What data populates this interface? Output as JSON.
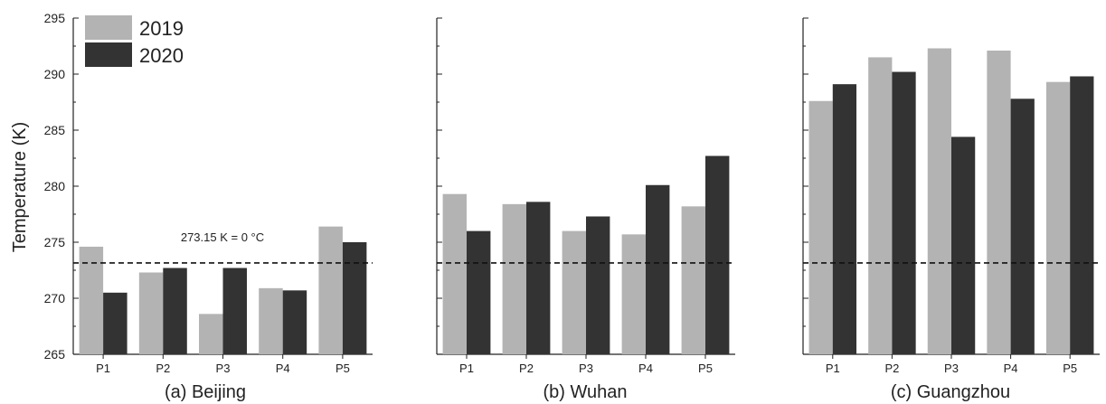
{
  "chart_data": {
    "type": "bar",
    "ylabel": "Temperature (K)",
    "ylim": [
      265,
      295
    ],
    "yticks": [
      265,
      270,
      275,
      280,
      285,
      290,
      295
    ],
    "categories": [
      "P1",
      "P2",
      "P3",
      "P4",
      "P5"
    ],
    "legend": {
      "placement": "top-left",
      "entries": [
        {
          "name": "2019",
          "color": "#b3b3b3"
        },
        {
          "name": "2020",
          "color": "#333333"
        }
      ]
    },
    "reference_line": {
      "value": 273.15,
      "style": "dashed",
      "label": "273.15 K = 0 °C"
    },
    "panels": [
      {
        "title": "(a) Beijing",
        "series": [
          {
            "name": "2019",
            "values": [
              274.6,
              272.3,
              268.6,
              270.9,
              276.4
            ]
          },
          {
            "name": "2020",
            "values": [
              270.5,
              272.7,
              272.7,
              270.7,
              275.0
            ]
          }
        ]
      },
      {
        "title": "(b) Wuhan",
        "series": [
          {
            "name": "2019",
            "values": [
              279.3,
              278.4,
              276.0,
              275.7,
              278.2
            ]
          },
          {
            "name": "2020",
            "values": [
              276.0,
              278.6,
              277.3,
              280.1,
              282.7
            ]
          }
        ]
      },
      {
        "title": "(c) Guangzhou",
        "series": [
          {
            "name": "2019",
            "values": [
              287.6,
              291.5,
              292.3,
              292.1,
              289.3
            ]
          },
          {
            "name": "2020",
            "values": [
              289.1,
              290.2,
              284.4,
              287.8,
              289.8
            ]
          }
        ]
      }
    ]
  }
}
